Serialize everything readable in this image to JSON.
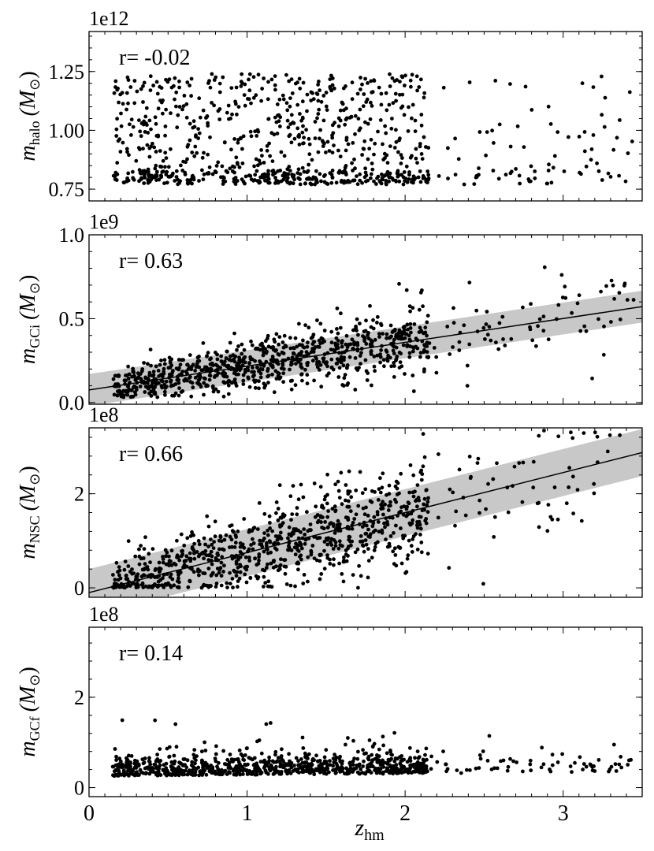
{
  "chart_data": [
    {
      "type": "scatter",
      "ylabel": "m_halo (M_⊙)",
      "ylabel_main": "m",
      "ylabel_sub": "halo",
      "ylabel_unit": "(M",
      "ylabel_unit_sub": "⊙",
      "ylabel_close": ")",
      "offset_label": "1e12",
      "r_label": "r= -0.02",
      "ylim": [
        0.7,
        1.42
      ],
      "yticks": [
        0.75,
        1.0,
        1.25
      ],
      "ytick_labels": [
        "0.75",
        "1.00",
        "1.25"
      ],
      "fit": null,
      "points": {
        "n": 900,
        "seed": 11,
        "mean_slope": 0.0,
        "mean_intercept": 1.0,
        "scatter": 0.14,
        "ymin": 0.77,
        "ymax": 1.24,
        "model": "uniform"
      }
    },
    {
      "type": "scatter",
      "ylabel": "m_GCi (M_⊙)",
      "ylabel_main": "m",
      "ylabel_sub": "GCi",
      "ylabel_unit": "(M",
      "ylabel_unit_sub": "⊙",
      "ylabel_close": ")",
      "offset_label": "1e9",
      "r_label": "r= 0.63",
      "ylim": [
        -0.01,
        1.0
      ],
      "yticks": [
        0.0,
        0.5,
        1.0
      ],
      "ytick_labels": [
        "0.0",
        "0.5",
        "1.0"
      ],
      "fit": {
        "slope": 0.142,
        "intercept": 0.075,
        "band": 0.095
      },
      "points": {
        "n": 900,
        "seed": 23,
        "mean_slope": 0.142,
        "mean_intercept": 0.075,
        "scatter": 0.075,
        "ymin": 0.03,
        "ymax": 0.87,
        "model": "linear"
      }
    },
    {
      "type": "scatter",
      "ylabel": "m_NSC (M_⊙)",
      "ylabel_main": "m",
      "ylabel_sub": "NSC",
      "ylabel_unit": "(M",
      "ylabel_unit_sub": "⊙",
      "ylabel_close": ")",
      "offset_label": "1e8",
      "r_label": "r= 0.66",
      "ylim": [
        -0.2,
        3.4
      ],
      "yticks": [
        0,
        2
      ],
      "ytick_labels": [
        "0",
        "2"
      ],
      "fit": {
        "slope": 0.85,
        "intercept": -0.1,
        "band": 0.5
      },
      "points": {
        "n": 900,
        "seed": 37,
        "mean_slope": 0.85,
        "mean_intercept": -0.1,
        "scatter": 0.42,
        "ymin": 0.0,
        "ymax": 3.35,
        "model": "linear"
      }
    },
    {
      "type": "scatter",
      "ylabel": "m_GCf (M_⊙)",
      "ylabel_main": "m",
      "ylabel_sub": "GCf",
      "ylabel_unit": "(M",
      "ylabel_unit_sub": "⊙",
      "ylabel_close": ")",
      "offset_label": "1e8",
      "r_label": "r= 0.14",
      "ylim": [
        -0.2,
        3.55
      ],
      "yticks": [
        0,
        2
      ],
      "ytick_labels": [
        "0",
        "2"
      ],
      "fit": null,
      "points": {
        "n": 900,
        "seed": 51,
        "mean_slope": 0.03,
        "mean_intercept": 0.4,
        "scatter": 0.22,
        "ymin": 0.02,
        "ymax": 3.35,
        "model": "skewed"
      }
    }
  ],
  "xaxis": {
    "label_main": "z",
    "label_sub": "hm",
    "xlim": [
      0,
      3.5
    ],
    "xticks": [
      0,
      1,
      2,
      3
    ],
    "xtick_labels": [
      "0",
      "1",
      "2",
      "3"
    ]
  },
  "colors": {
    "points": "#000000",
    "band": "#c8c8c8",
    "line": "#000000"
  }
}
